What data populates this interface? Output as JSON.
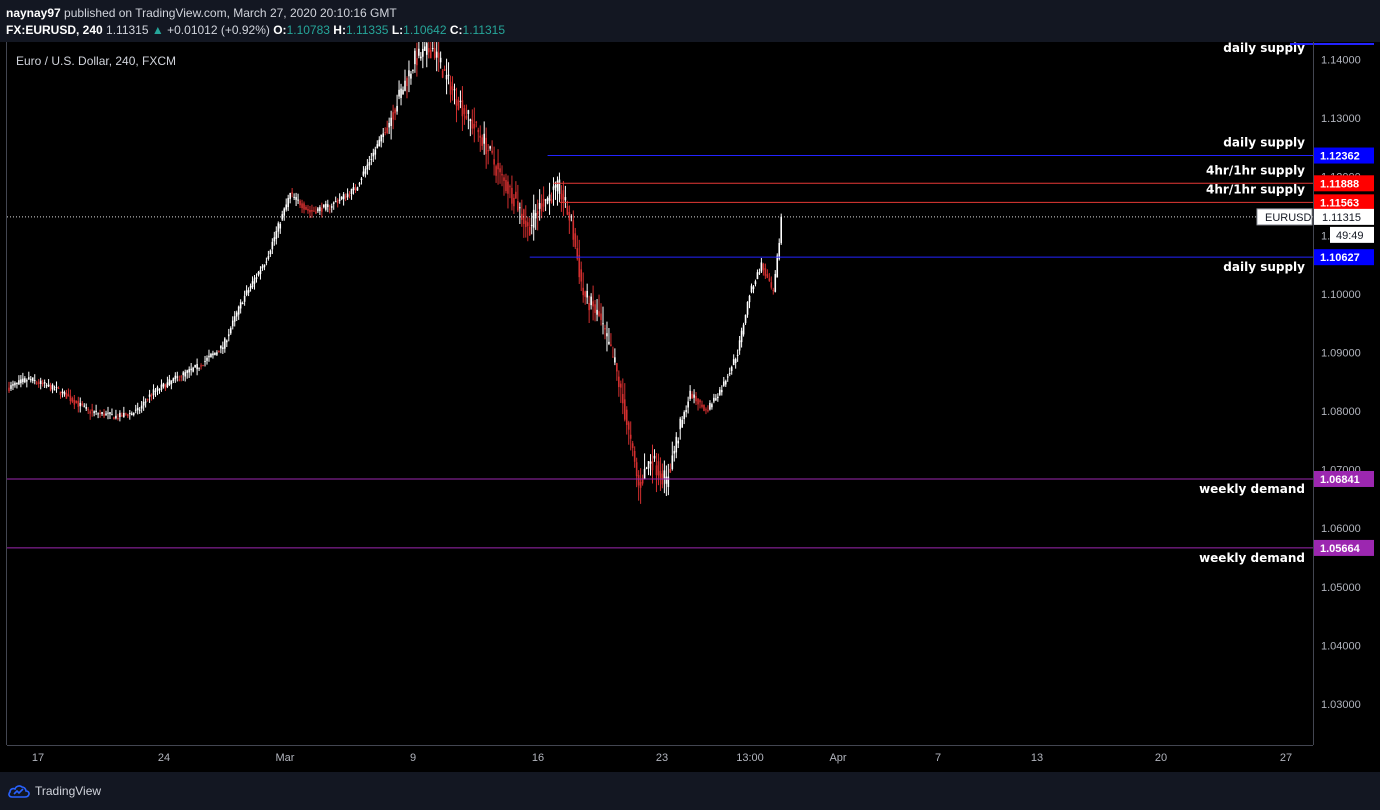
{
  "header": {
    "author": "naynay97",
    "published_text": "published on TradingView.com, March 27, 2020 20:10:16 GMT",
    "symbol": "FX:EURUSD, 240",
    "last": "1.11315",
    "change_arrow": "▲",
    "change": "+0.01012 (+0.92%)",
    "o_label": "O:",
    "o": "1.10783",
    "h_label": "H:",
    "h": "1.11335",
    "l_label": "L:",
    "l": "1.10642",
    "c_label": "C:",
    "c": "1.11315"
  },
  "footer": {
    "brand": "TradingView"
  },
  "chart_data": {
    "type": "candlestick",
    "title": "Euro / U.S. Dollar, 240, FXCM",
    "ylim": [
      1.023,
      1.143
    ],
    "y_ticks": [
      "1.14000",
      "1.13000",
      "1.12000",
      "1.11000",
      "1.10000",
      "1.09000",
      "1.08000",
      "1.07000",
      "1.06000",
      "1.05000",
      "1.04000",
      "1.03000"
    ],
    "x_ticks": [
      "17",
      "24",
      "Mar",
      "9",
      "16",
      "23",
      "13:00",
      "Apr",
      "7",
      "13",
      "20",
      "27"
    ],
    "current_price": "1.11315",
    "current_symbol": "EURUSD",
    "countdown": "49:49",
    "up_color": "#ffffff",
    "down_color": "#d32f2f",
    "waypoints": [
      [
        0,
        1.084
      ],
      [
        10,
        1.0855
      ],
      [
        25,
        1.0835
      ],
      [
        40,
        1.08
      ],
      [
        55,
        1.079
      ],
      [
        65,
        1.08
      ],
      [
        72,
        1.083
      ],
      [
        84,
        1.0855
      ],
      [
        95,
        1.0875
      ],
      [
        108,
        1.091
      ],
      [
        118,
        1.099
      ],
      [
        130,
        1.106
      ],
      [
        142,
        1.117
      ],
      [
        152,
        1.114
      ],
      [
        162,
        1.115
      ],
      [
        175,
        1.118
      ],
      [
        190,
        1.128
      ],
      [
        205,
        1.14
      ],
      [
        214,
        1.142
      ],
      [
        222,
        1.136
      ],
      [
        232,
        1.13
      ],
      [
        240,
        1.126
      ],
      [
        248,
        1.12
      ],
      [
        256,
        1.116
      ],
      [
        262,
        1.111
      ],
      [
        270,
        1.116
      ],
      [
        278,
        1.118
      ],
      [
        284,
        1.112
      ],
      [
        290,
        1.1
      ],
      [
        298,
        1.096
      ],
      [
        306,
        1.088
      ],
      [
        312,
        1.078
      ],
      [
        318,
        1.067
      ],
      [
        324,
        1.072
      ],
      [
        332,
        1.068
      ],
      [
        338,
        1.076
      ],
      [
        344,
        1.083
      ],
      [
        352,
        1.08
      ],
      [
        360,
        1.084
      ],
      [
        368,
        1.09
      ],
      [
        374,
        1.1
      ],
      [
        380,
        1.105
      ],
      [
        386,
        1.1
      ],
      [
        390,
        1.112
      ]
    ],
    "zones": [
      {
        "label": "daily supply",
        "price": 1.12362,
        "price_label": "1.12362",
        "line_color": "#2323ff",
        "tag_color": "#0000ff",
        "line_from_candle": 272
      },
      {
        "label": "4hr/1hr supply",
        "price": 1.11888,
        "price_label": "1.11888",
        "line_color": "#e53935",
        "tag_color": "#ff0000",
        "line_from_candle": 275
      },
      {
        "label": "4hr/1hr supply",
        "price": 1.11563,
        "price_label": "1.11563",
        "line_color": "#e53935",
        "tag_color": "#ff0000",
        "line_from_candle": 278
      },
      {
        "label": "daily supply",
        "price": 1.10627,
        "price_label": "1.10627",
        "line_color": "#2323ff",
        "tag_color": "#0000ff",
        "line_from_candle": 263
      },
      {
        "label": "weekly demand",
        "price": 1.06841,
        "price_label": "1.06841",
        "line_color": "#9c27b0",
        "tag_color": "#9c27b0",
        "line_from_candle": 0
      },
      {
        "label": "weekly demand",
        "price": 1.05664,
        "price_label": "1.05664",
        "line_color": "#9c27b0",
        "tag_color": "#9c27b0",
        "line_from_candle": 0
      }
    ],
    "top_label": "daily supply"
  }
}
